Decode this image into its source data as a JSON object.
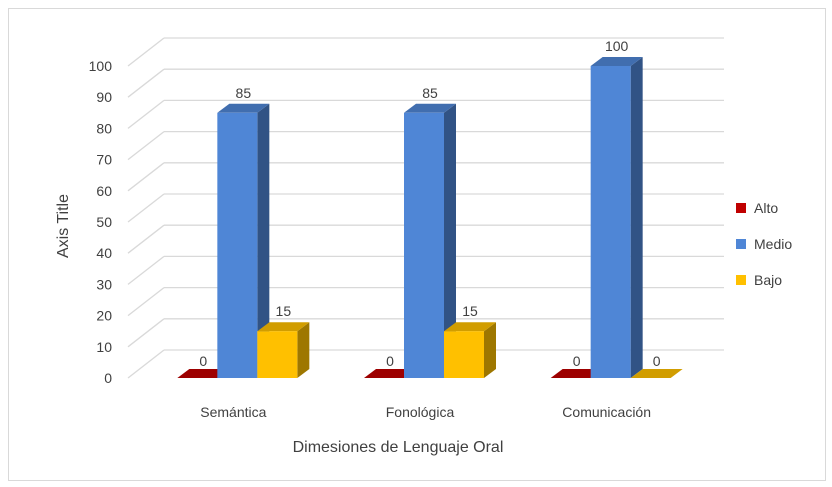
{
  "chart_data": {
    "type": "bar",
    "categories": [
      "Semántica",
      "Fonológica",
      "Comunicación"
    ],
    "series": [
      {
        "name": "Alto",
        "values": [
          0,
          0,
          0
        ],
        "color": "#c00000"
      },
      {
        "name": "Medio",
        "values": [
          85,
          85,
          100
        ],
        "color": "#4f86d6"
      },
      {
        "name": "Bajo",
        "values": [
          15,
          15,
          0
        ],
        "color": "#ffc000"
      }
    ],
    "xlabel": "Dimesiones de Lenguaje Oral",
    "ylabel": "Axis Title",
    "ylim": [
      0,
      100
    ],
    "yticks": [
      0,
      10,
      20,
      30,
      40,
      50,
      60,
      70,
      80,
      90,
      100
    ],
    "data_labels": [
      [
        "0",
        "85",
        "15"
      ],
      [
        "0",
        "85",
        "15"
      ],
      [
        "0",
        "100",
        "0"
      ]
    ],
    "grid": true,
    "legend_position": "right",
    "style": "3d-clustered-column"
  }
}
